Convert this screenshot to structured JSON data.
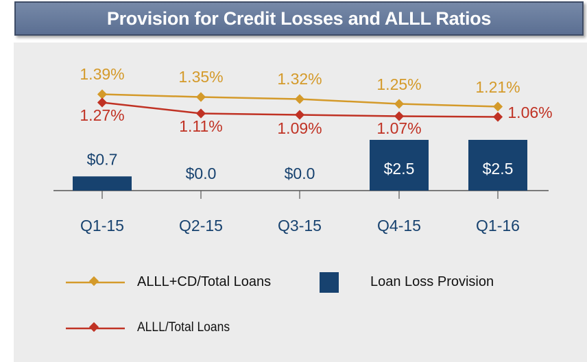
{
  "title": "Provision for Credit Losses and ALLL Ratios",
  "colors": {
    "header_bg": "#6b7fa0",
    "panel_bg": "#ececec",
    "bar": "#17426f",
    "line_alll_cd": "#d49a2a",
    "line_alll": "#c03224",
    "bar_label_outside": "#17426f",
    "bar_label_inside": "#ffffff"
  },
  "chart_data": {
    "type": "bar+line",
    "categories": [
      "Q1-15",
      "Q2-15",
      "Q3-15",
      "Q4-15",
      "Q1-16"
    ],
    "bars": {
      "name": "Loan Loss Provision",
      "values": [
        0.7,
        0.0,
        0.0,
        2.5,
        2.5
      ],
      "labels": [
        "$0.7",
        "$0.0",
        "$0.0",
        "$2.5",
        "$2.5"
      ]
    },
    "lines": [
      {
        "name": "ALLL+CD/Total Loans",
        "values": [
          1.39,
          1.35,
          1.32,
          1.25,
          1.21
        ],
        "labels": [
          "1.39%",
          "1.35%",
          "1.32%",
          "1.25%",
          "1.21%"
        ]
      },
      {
        "name": "ALLL/Total Loans",
        "values": [
          1.27,
          1.11,
          1.09,
          1.07,
          1.06
        ],
        "labels": [
          "1.27%",
          "1.11%",
          "1.09%",
          "1.07%",
          "1.06%"
        ]
      }
    ],
    "legend": {
      "line1": "ALLL+CD/Total Loans",
      "bar": "Loan Loss Provision",
      "line2": "ALLL/Total Loans"
    },
    "grid": false,
    "legend_position": "bottom"
  }
}
